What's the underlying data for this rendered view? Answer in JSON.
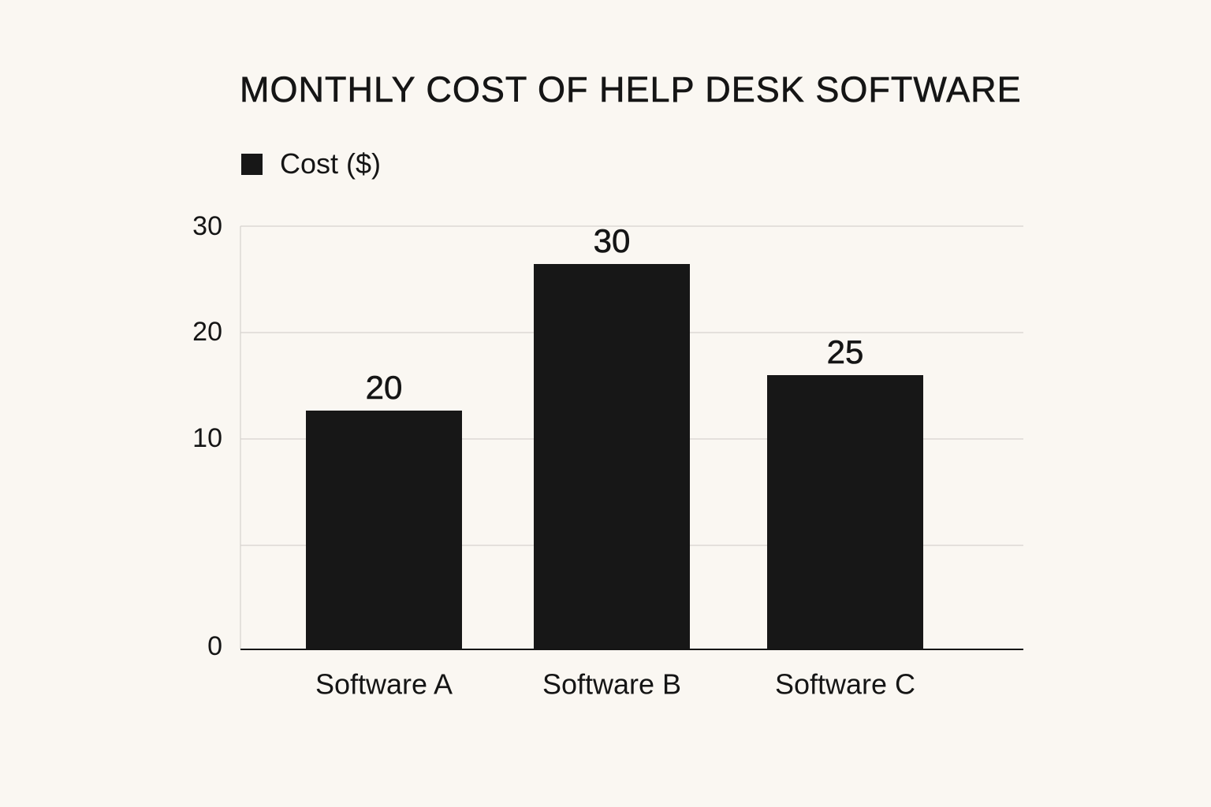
{
  "chart_data": {
    "type": "bar",
    "title": "MONTHLY COST OF HELP DESK SOFTWARE",
    "categories": [
      "Software A",
      "Software B",
      "Software C"
    ],
    "series": [
      {
        "name": "Cost ($)",
        "values": [
          20,
          30,
          25
        ],
        "data_labels": [
          "20",
          "30",
          "25"
        ],
        "color": "#171717"
      }
    ],
    "y_ticks": [
      {
        "value": 0,
        "label": "0"
      },
      {
        "value": 10,
        "label": "10"
      },
      {
        "value": 20,
        "label": "20"
      },
      {
        "value": 30,
        "label": "30"
      }
    ],
    "xlabel": "",
    "ylabel": "",
    "grid": true,
    "legend_position": "top-left",
    "colors": {
      "background": "#faf7f2",
      "bar": "#171717",
      "grid": "#d6d3ce",
      "axis": "#151515",
      "text": "#151515"
    }
  }
}
